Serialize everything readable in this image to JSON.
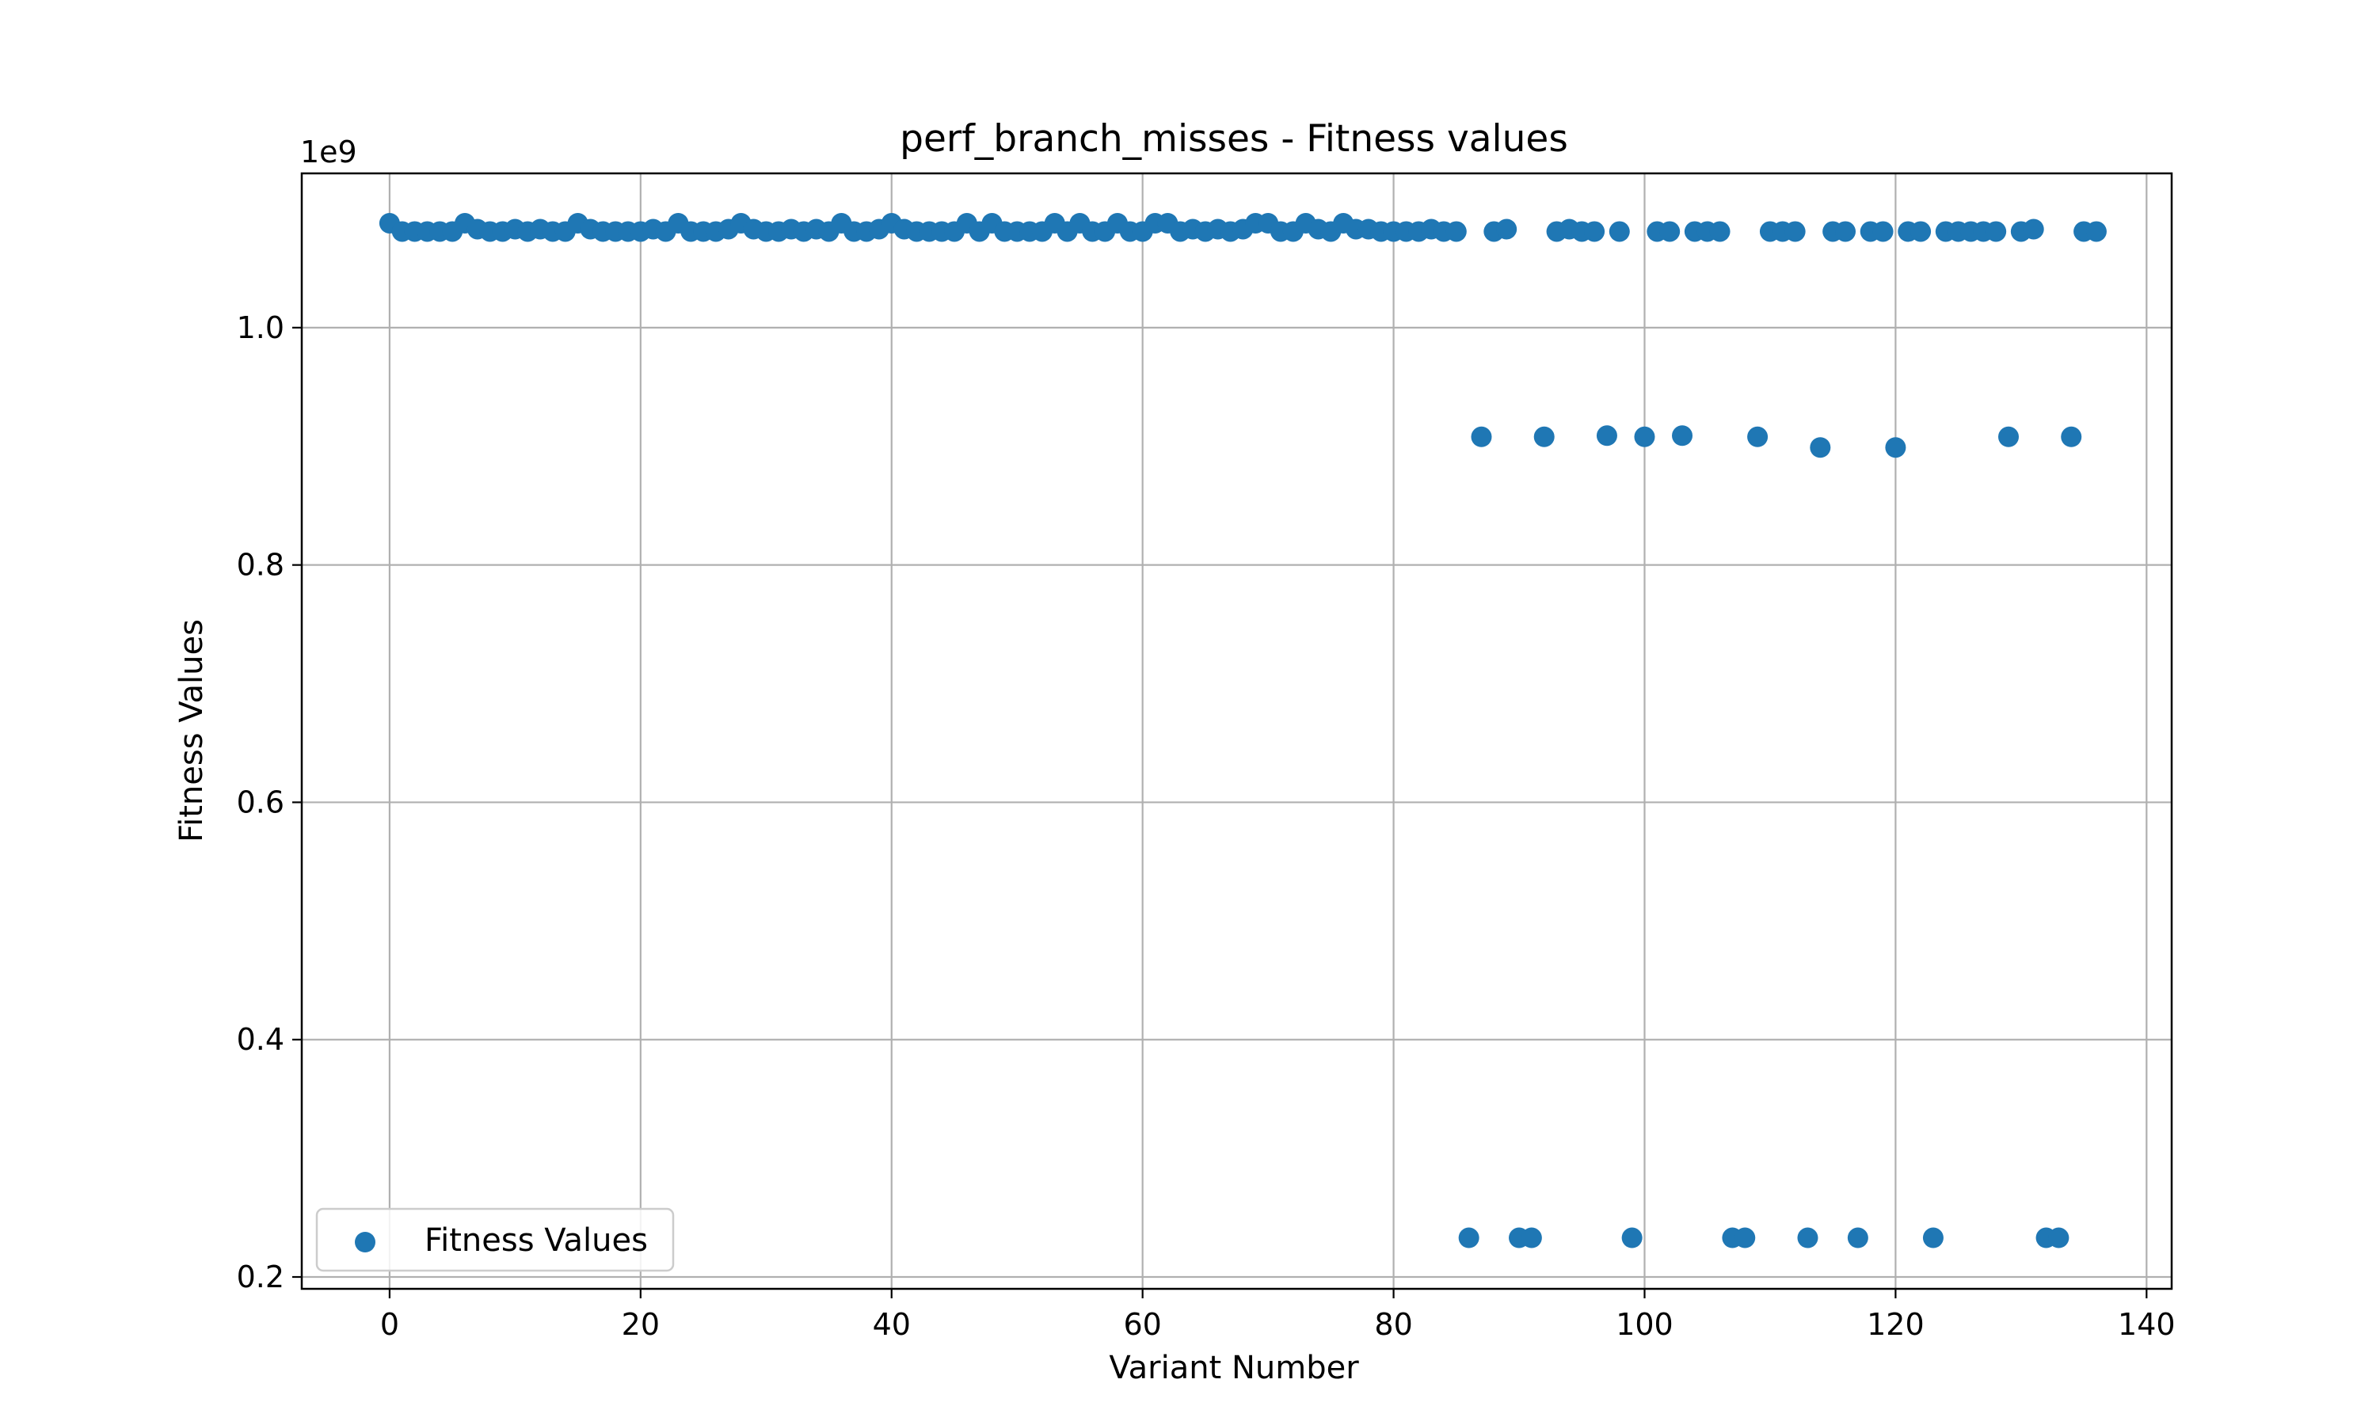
{
  "chart_data": {
    "type": "scatter",
    "title": "perf_branch_misses - Fitness values",
    "xlabel": "Variant Number",
    "ylabel": "Fitness Values",
    "offset_text": "1e9",
    "xlim": [
      -7,
      142
    ],
    "ylim": [
      0.19,
      1.13
    ],
    "xticks": [
      0,
      20,
      40,
      60,
      80,
      100,
      120,
      140
    ],
    "xtick_labels": [
      "0",
      "20",
      "40",
      "60",
      "80",
      "100",
      "120",
      "140"
    ],
    "yticks": [
      0.2,
      0.4,
      0.6,
      0.8,
      1.0
    ],
    "ytick_labels": [
      "0.2",
      "0.4",
      "0.6",
      "0.8",
      "1.0"
    ],
    "grid": true,
    "legend_position": "lower-left",
    "colors": {
      "series": "#1f77b4",
      "grid": "#b0b0b0"
    },
    "series": [
      {
        "name": "Fitness Values",
        "x": [
          0,
          1,
          2,
          3,
          4,
          5,
          6,
          7,
          8,
          9,
          10,
          11,
          12,
          13,
          14,
          15,
          16,
          17,
          18,
          19,
          20,
          21,
          22,
          23,
          24,
          25,
          26,
          27,
          28,
          29,
          30,
          31,
          32,
          33,
          34,
          35,
          36,
          37,
          38,
          39,
          40,
          41,
          42,
          43,
          44,
          45,
          46,
          47,
          48,
          49,
          50,
          51,
          52,
          53,
          54,
          55,
          56,
          57,
          58,
          59,
          60,
          61,
          62,
          63,
          64,
          65,
          66,
          67,
          68,
          69,
          70,
          71,
          72,
          73,
          74,
          75,
          76,
          77,
          78,
          79,
          80,
          81,
          82,
          83,
          84,
          85,
          86,
          87,
          88,
          89,
          90,
          91,
          92,
          93,
          94,
          95,
          96,
          97,
          98,
          99,
          100,
          101,
          102,
          103,
          104,
          105,
          106,
          107,
          108,
          109,
          110,
          111,
          112,
          113,
          114,
          115,
          116,
          117,
          118,
          119,
          120,
          121,
          122,
          123,
          124,
          125,
          126,
          127,
          128,
          129,
          130,
          131,
          132,
          133,
          134,
          135,
          136
        ],
        "y": [
          1.088,
          1.081,
          1.081,
          1.081,
          1.081,
          1.081,
          1.088,
          1.083,
          1.081,
          1.081,
          1.083,
          1.081,
          1.083,
          1.081,
          1.081,
          1.088,
          1.083,
          1.081,
          1.081,
          1.081,
          1.081,
          1.083,
          1.081,
          1.088,
          1.081,
          1.081,
          1.081,
          1.083,
          1.088,
          1.083,
          1.081,
          1.081,
          1.083,
          1.081,
          1.083,
          1.081,
          1.088,
          1.081,
          1.081,
          1.083,
          1.088,
          1.083,
          1.081,
          1.081,
          1.081,
          1.081,
          1.088,
          1.081,
          1.088,
          1.081,
          1.081,
          1.081,
          1.081,
          1.088,
          1.081,
          1.088,
          1.081,
          1.081,
          1.088,
          1.081,
          1.081,
          1.088,
          1.088,
          1.081,
          1.083,
          1.081,
          1.083,
          1.081,
          1.083,
          1.088,
          1.088,
          1.081,
          1.081,
          1.088,
          1.083,
          1.081,
          1.088,
          1.083,
          1.083,
          1.081,
          1.081,
          1.081,
          1.081,
          1.083,
          1.081,
          1.081,
          0.233,
          0.908,
          1.081,
          1.083,
          0.233,
          0.233,
          0.908,
          1.081,
          1.083,
          1.081,
          1.081,
          0.909,
          1.081,
          0.233,
          0.908,
          1.081,
          1.081,
          0.909,
          1.081,
          1.081,
          1.081,
          0.233,
          0.233,
          0.908,
          1.081,
          1.081,
          1.081,
          0.233,
          0.899,
          1.081,
          1.081,
          0.233,
          1.081,
          1.081,
          0.899,
          1.081,
          1.081,
          0.233,
          1.081,
          1.081,
          1.081,
          1.081,
          1.081,
          0.908,
          1.081,
          1.083,
          0.233,
          0.233,
          0.908,
          1.081,
          1.081
        ]
      }
    ]
  }
}
